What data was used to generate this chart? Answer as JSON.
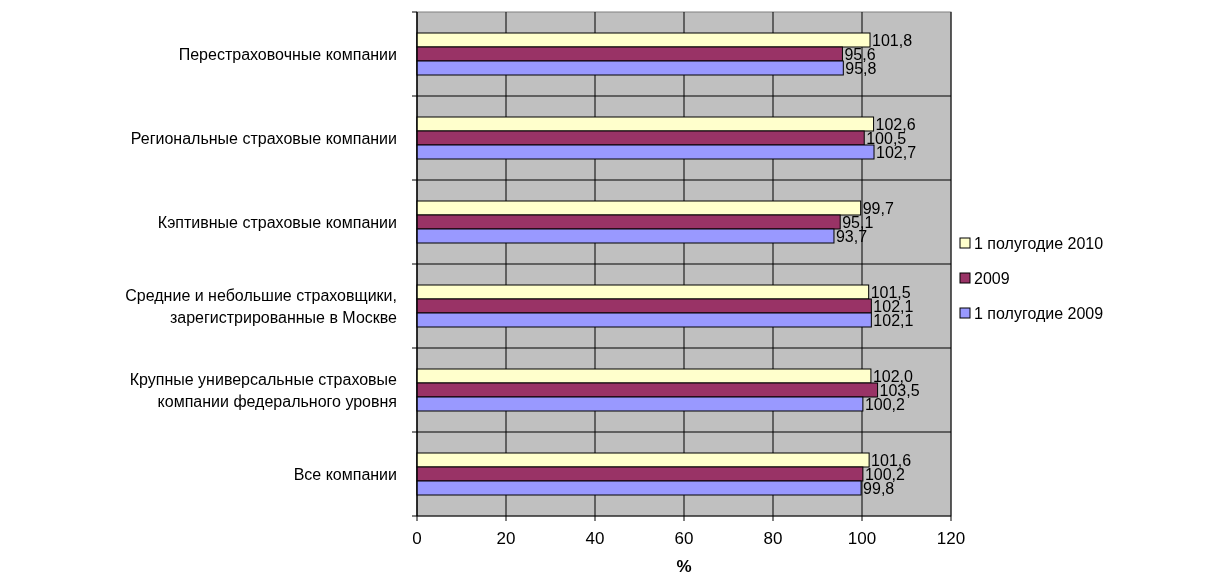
{
  "chart_data": {
    "type": "bar",
    "orientation": "horizontal",
    "xlabel": "%",
    "categories": [
      "Перестраховочные компании",
      "Региональные страховые компании",
      "Кэптивные страховые компании",
      "Средние и небольшие страховщики,\nзарегистрированные в Москве",
      "Крупные универсальные страховые\nкомпании федерального уровня",
      "Все компании"
    ],
    "series": [
      {
        "name": "1 полугодие 2010",
        "color": "#ffffcc",
        "values": [
          101.8,
          102.6,
          99.7,
          101.5,
          102.0,
          101.6
        ],
        "value_labels": [
          "101,8",
          "102,6",
          "99,7",
          "101,5",
          "102,0",
          "101,6"
        ]
      },
      {
        "name": "2009",
        "color": "#993366",
        "values": [
          95.6,
          100.5,
          95.1,
          102.1,
          103.5,
          100.2
        ],
        "value_labels": [
          "95,6",
          "100,5",
          "95,1",
          "102,1",
          "103,5",
          "100,2"
        ]
      },
      {
        "name": "1 полугодие 2009",
        "color": "#9999ff",
        "values": [
          95.8,
          102.7,
          93.7,
          102.1,
          100.2,
          99.8
        ],
        "value_labels": [
          "95,8",
          "102,7",
          "93,7",
          "102,1",
          "100,2",
          "99,8"
        ]
      }
    ],
    "xlim": [
      0,
      120
    ],
    "xticks": [
      0,
      20,
      40,
      60,
      80,
      100,
      120
    ],
    "grid": true,
    "legend": "right"
  }
}
